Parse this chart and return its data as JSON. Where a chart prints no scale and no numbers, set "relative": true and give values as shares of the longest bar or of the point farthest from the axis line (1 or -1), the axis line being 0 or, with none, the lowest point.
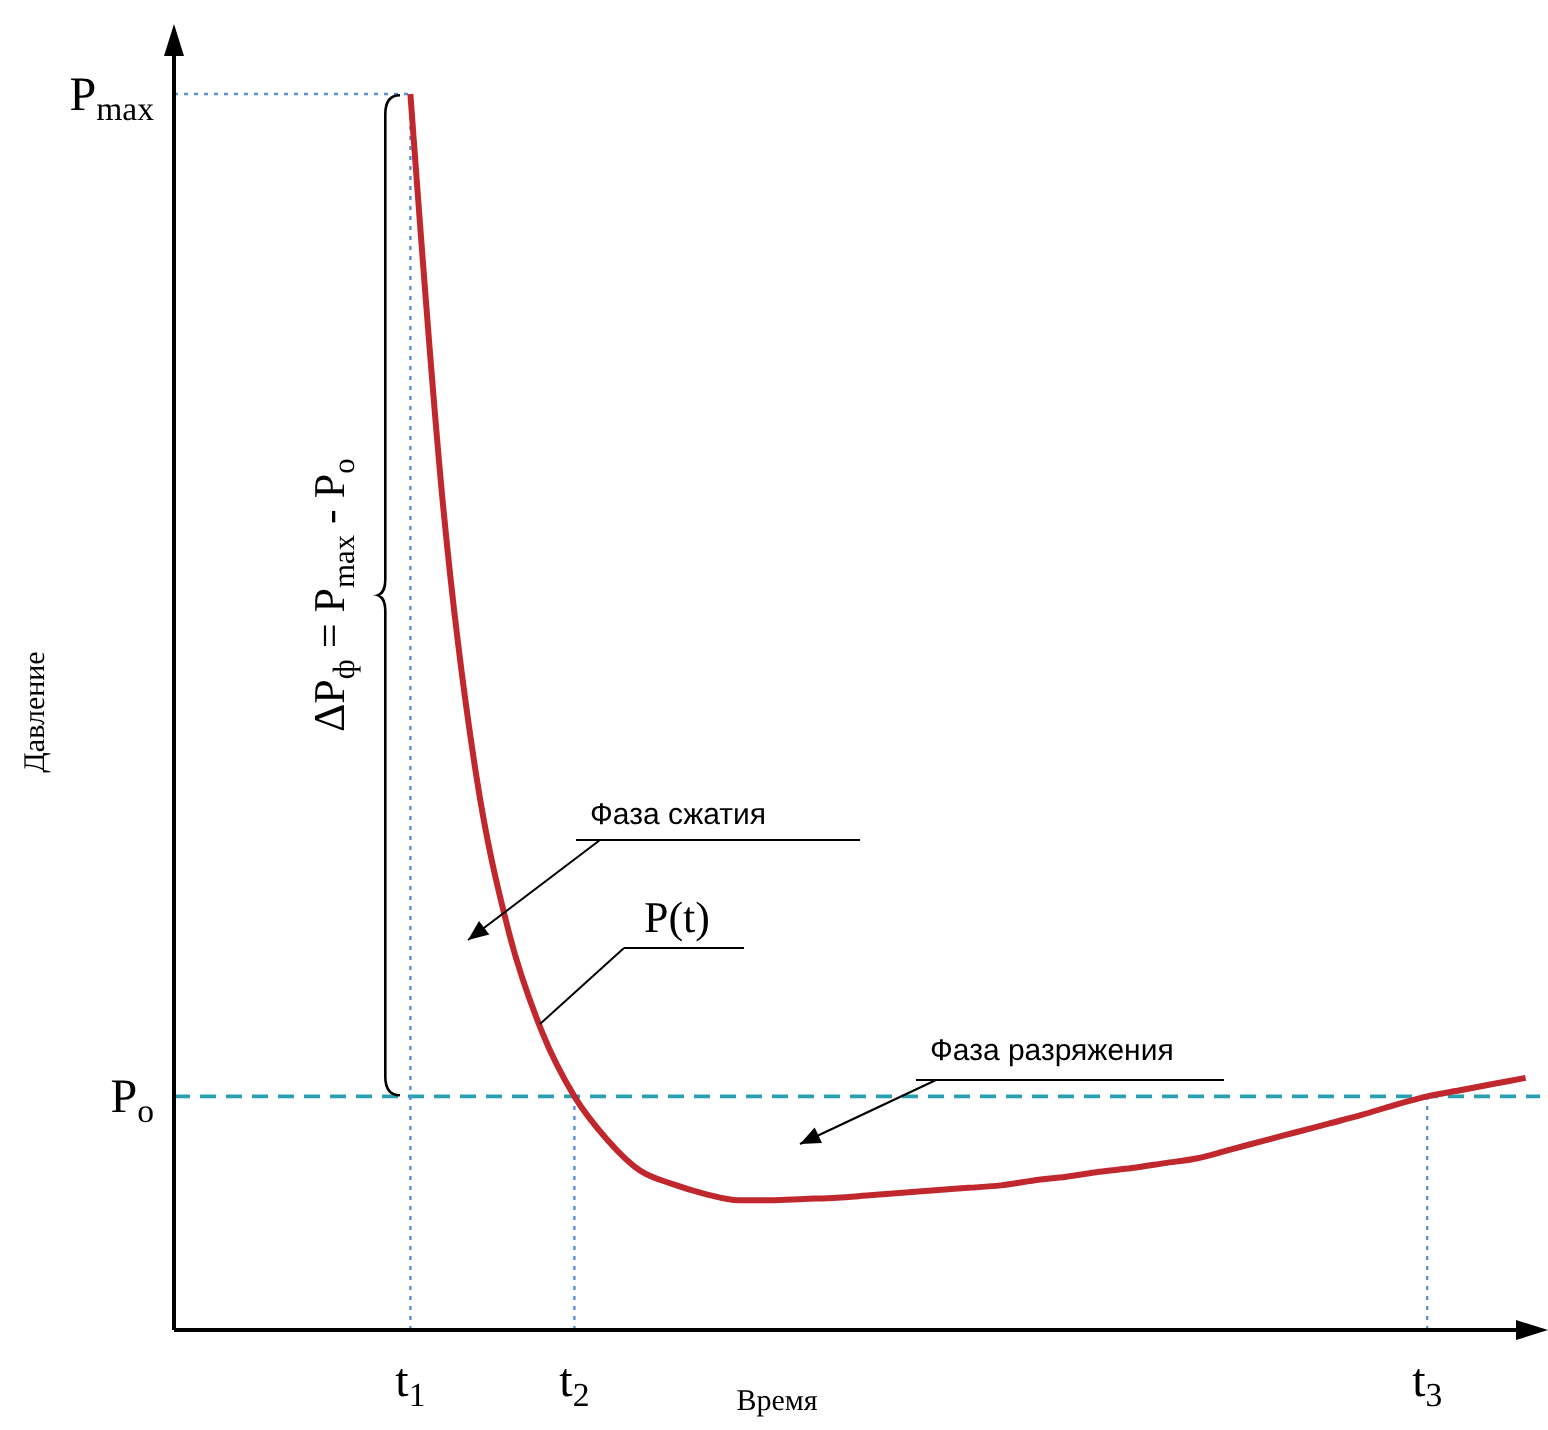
{
  "chart_data": {
    "type": "line",
    "relative": true,
    "xlabel": "Время",
    "ylabel": "Давление",
    "categories": [
      null,
      null,
      null,
      null,
      null,
      null,
      null,
      "t$_{1}$",
      null,
      null,
      null,
      null,
      "t$_{2}$",
      null,
      null,
      null,
      null,
      null,
      null,
      null,
      null,
      null,
      null,
      null,
      null,
      null,
      null,
      null,
      null,
      null,
      null,
      null,
      null,
      null,
      null,
      null,
      null,
      null,
      "t$_{3}$",
      null,
      null,
      null
    ],
    "series": [
      {
        "color": "#c0282d",
        "values": [
          null,
          null,
          null,
          null,
          null,
          null,
          null,
          1.0,
          0.666,
          0.45,
          0.322,
          0.242,
          0.189,
          0.154,
          0.129,
          0.118,
          0.11,
          0.105,
          0.105,
          0.106,
          0.107,
          0.109,
          0.111,
          0.113,
          0.115,
          0.117,
          0.121,
          0.124,
          0.128,
          0.131,
          0.135,
          0.139,
          0.146,
          0.153,
          0.16,
          0.167,
          0.174,
          0.182,
          0.189,
          0.194,
          0.199,
          0.204
        ]
      }
    ],
    "ref_lines": [
      {
        "axis": "y",
        "value": 1,
        "label": "P$_{max}$",
        "color": "#5b8fd6",
        "line_style": "dotted"
      },
      {
        "axis": "y",
        "value": 0.189,
        "label": "P$_{o}$",
        "color": "#2a9fb0",
        "line_style": "dashed"
      },
      {
        "axis": "x",
        "value": "t$_{1}$",
        "color": "#5b8fd6",
        "line_style": "dotted"
      },
      {
        "axis": "x",
        "value": "t$_{2}$",
        "color": "#5b8fd6",
        "line_style": "dotted"
      },
      {
        "axis": "x",
        "value": "t$_{3}$",
        "color": "#5b8fd6",
        "line_style": "dotted"
      }
    ],
    "annotations": [
      "Фаза сжатия",
      "P(t)",
      "Фаза разряжения",
      "ΔP$_{ф}$ = P$_{max}$ - P$_{o}$"
    ],
    "marker": "none",
    "line_style": "solid"
  }
}
